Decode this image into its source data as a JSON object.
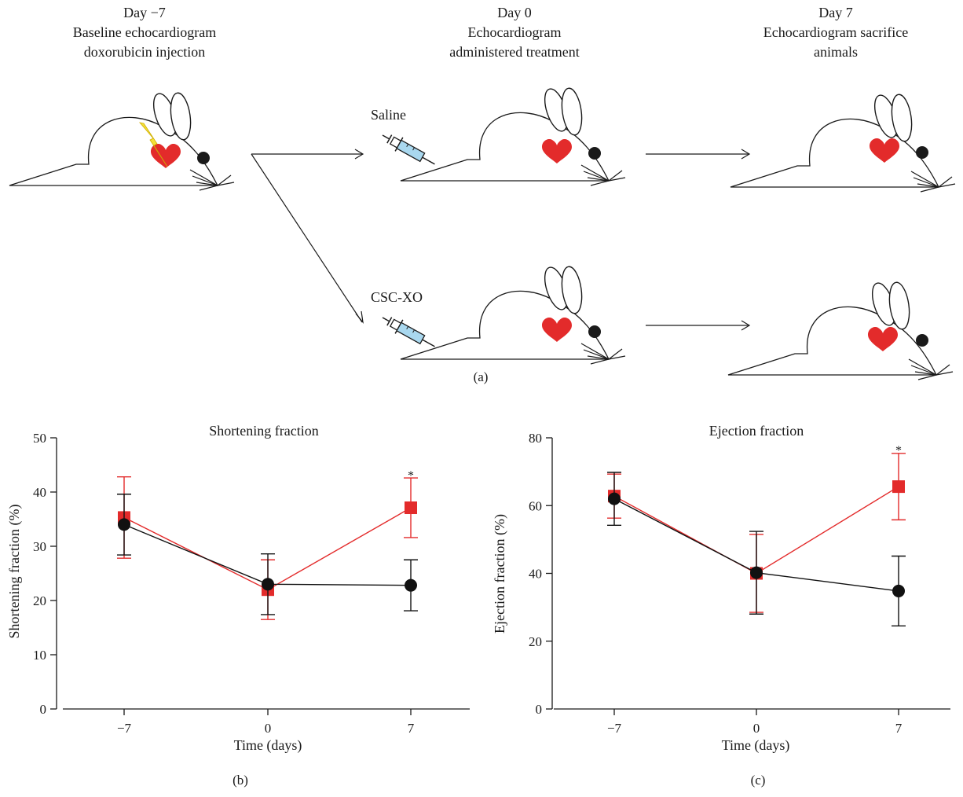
{
  "diagram": {
    "stages": [
      {
        "day": "Day −7",
        "lines": [
          "Baseline echocardiogram",
          "doxorubicin injection"
        ]
      },
      {
        "day": "Day 0",
        "lines": [
          "Echocardiogram",
          "administered treatment"
        ]
      },
      {
        "day": "Day 7",
        "lines": [
          "Echocardiogram sacrifice",
          "animals"
        ]
      }
    ],
    "groups": [
      "Saline",
      "CSC-XO"
    ],
    "panel_label": "(a)"
  },
  "colors": {
    "treated": "#e32b2b",
    "control": "#111111",
    "heart": "#e32b2b",
    "syringe_fluid": "#a9d8ef",
    "lightning": "#f4e03a"
  },
  "chart_data": [
    {
      "type": "line",
      "panel_label": "(b)",
      "title": "Shortening fraction",
      "xlabel": "Time (days)",
      "ylabel": "Shortening fraction (%)",
      "categories": [
        "−7",
        "0",
        "7"
      ],
      "ylim": [
        0,
        50
      ],
      "yticks": [
        0,
        10,
        20,
        30,
        40,
        50
      ],
      "series": [
        {
          "color": "#e32b2b",
          "marker": "square",
          "values": [
            35.3,
            22.0,
            37.1
          ],
          "errors": [
            7.5,
            5.5,
            5.5
          ]
        },
        {
          "color": "#111111",
          "marker": "circle",
          "values": [
            34.0,
            23.0,
            22.8
          ],
          "errors": [
            5.6,
            5.6,
            4.7
          ]
        }
      ],
      "annotations": [
        {
          "text": "*",
          "category": "7",
          "y": 43.5
        }
      ]
    },
    {
      "type": "line",
      "panel_label": "(c)",
      "title": "Ejection fraction",
      "xlabel": "Time (days)",
      "ylabel": "Ejection fraction (%)",
      "categories": [
        "−7",
        "0",
        "7"
      ],
      "ylim": [
        0,
        80
      ],
      "yticks": [
        0,
        20,
        40,
        60,
        80
      ],
      "series": [
        {
          "color": "#e32b2b",
          "marker": "square",
          "values": [
            62.8,
            40.0,
            65.6
          ],
          "errors": [
            6.5,
            11.5,
            9.8
          ]
        },
        {
          "color": "#111111",
          "marker": "circle",
          "values": [
            62.0,
            40.2,
            34.8
          ],
          "errors": [
            7.8,
            12.2,
            10.3
          ]
        }
      ],
      "annotations": [
        {
          "text": "*",
          "category": "7",
          "y": 77
        }
      ]
    }
  ]
}
